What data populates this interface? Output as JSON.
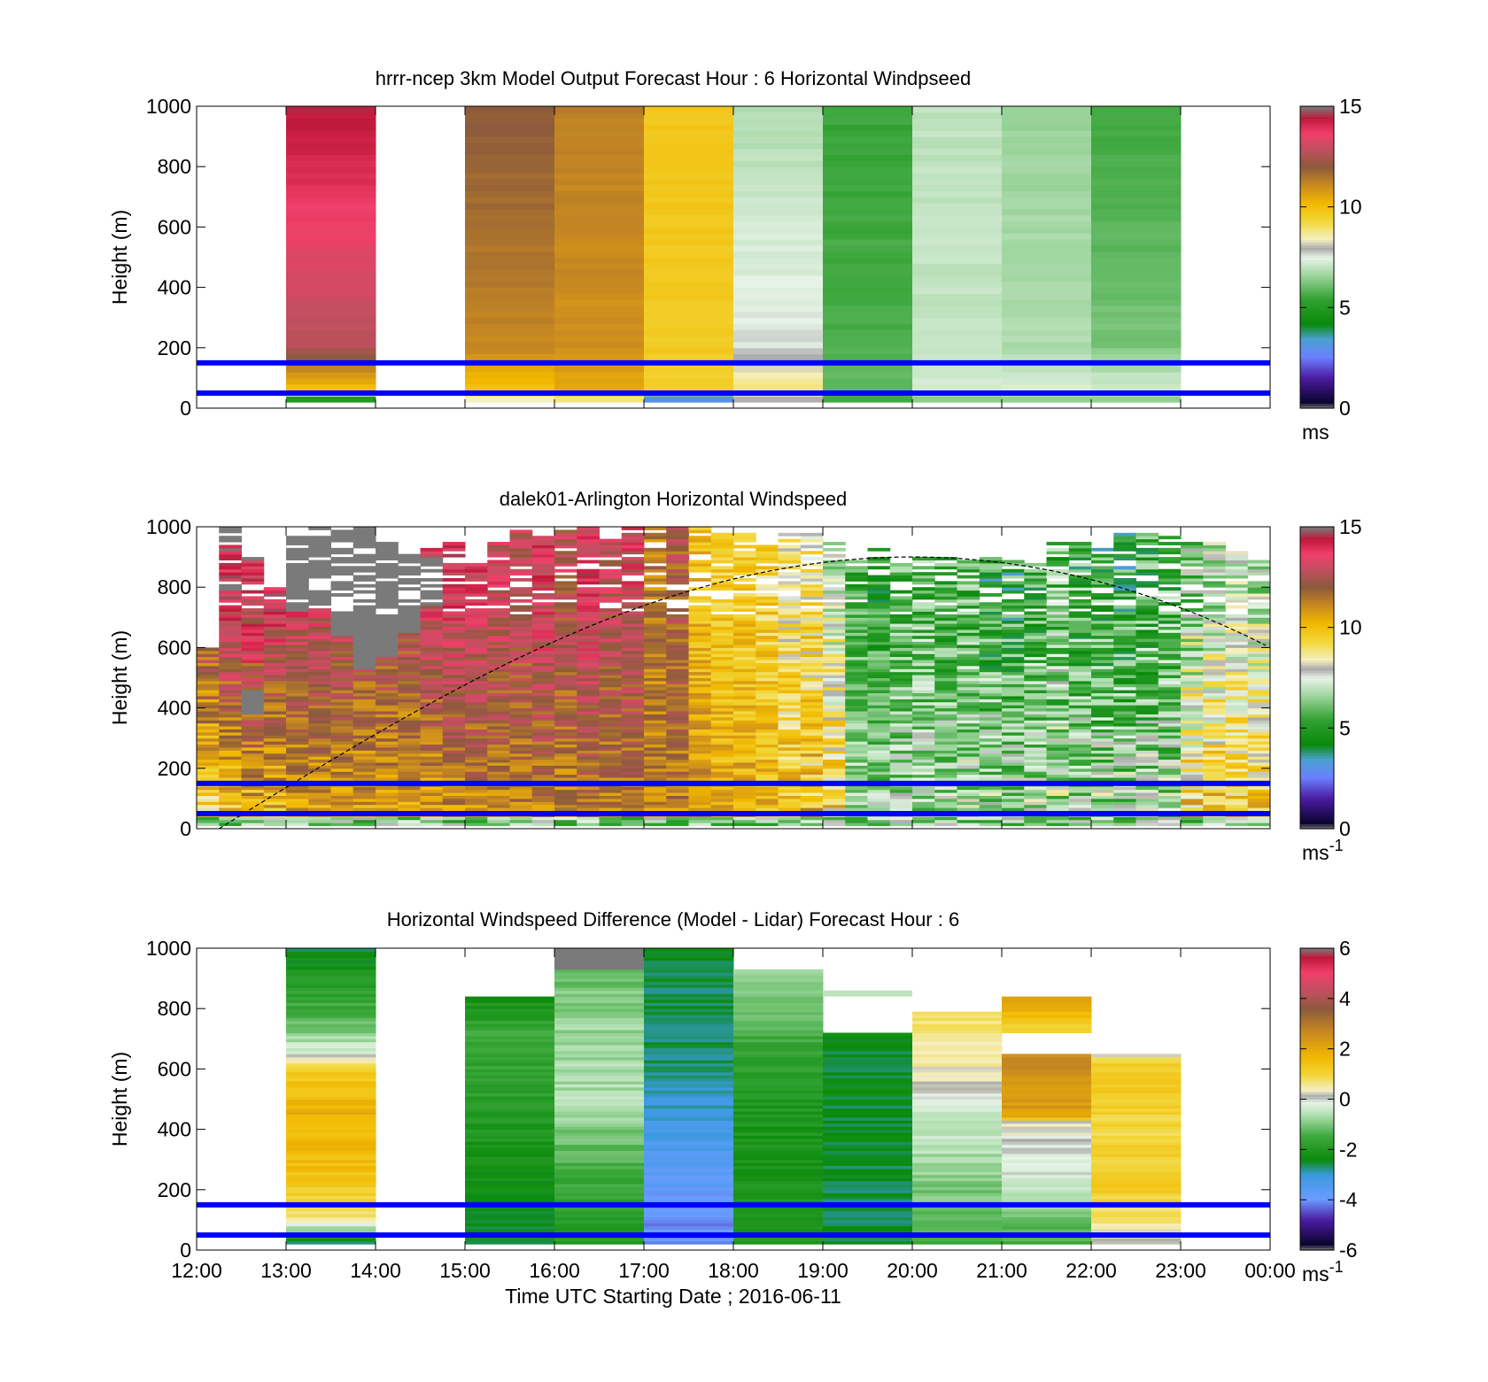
{
  "shared": {
    "time_ticks": [
      "12:00",
      "13:00",
      "14:00",
      "15:00",
      "16:00",
      "17:00",
      "18:00",
      "19:00",
      "20:00",
      "21:00",
      "22:00",
      "23:00",
      "00:00"
    ],
    "height_ticks": [
      "0",
      "200",
      "400",
      "600",
      "800",
      "1000"
    ],
    "ylabel": "Height (m)",
    "xlabel": "Time UTC  Starting Date ; 2016-06-11",
    "reference_lines_m": [
      50,
      150
    ],
    "reference_line_color": "#0000ff"
  },
  "chart_data": [
    {
      "type": "heatmap",
      "title": "hrrr-ncep 3km Model Output   Forecast Hour : 6 Horizontal Windpseed",
      "ylabel": "Height (m)",
      "xlim_hours": [
        12,
        24
      ],
      "ylim": [
        0,
        1000
      ],
      "colorbar": {
        "ticks": [
          "0",
          "5",
          "10",
          "15"
        ],
        "unit": "ms",
        "unit_sup": "",
        "range": [
          0,
          15
        ]
      },
      "columns": [
        {
          "start_hour": 13,
          "end_hour": 14,
          "top_m": 1000,
          "bottom_m": 20,
          "surface_value": 5,
          "low_value": 10,
          "upper_value": 14.5
        },
        {
          "start_hour": 15,
          "end_hour": 16,
          "top_m": 1000,
          "bottom_m": 20,
          "surface_value": 8.5,
          "low_value": 10,
          "upper_value": 12
        },
        {
          "start_hour": 16,
          "end_hour": 17,
          "top_m": 1000,
          "bottom_m": 20,
          "surface_value": 8.8,
          "low_value": 10.5,
          "upper_value": 11.3
        },
        {
          "start_hour": 17,
          "end_hour": 18,
          "top_m": 1000,
          "bottom_m": 20,
          "surface_value": 3,
          "low_value": 9.5,
          "upper_value": 9.8
        },
        {
          "start_hour": 18,
          "end_hour": 19,
          "top_m": 1000,
          "bottom_m": 20,
          "surface_value": 8,
          "low_value": 8.8,
          "upper_value": 6.8
        },
        {
          "start_hour": 19,
          "end_hour": 20,
          "top_m": 1000,
          "bottom_m": 20,
          "surface_value": 5.5,
          "low_value": 6,
          "upper_value": 5.5
        },
        {
          "start_hour": 20,
          "end_hour": 21,
          "top_m": 1000,
          "bottom_m": 20,
          "surface_value": 6.5,
          "low_value": 7.2,
          "upper_value": 7
        },
        {
          "start_hour": 21,
          "end_hour": 22,
          "top_m": 1000,
          "bottom_m": 20,
          "surface_value": 6.5,
          "low_value": 7.2,
          "upper_value": 6.6
        },
        {
          "start_hour": 22,
          "end_hour": 23,
          "top_m": 1000,
          "bottom_m": 20,
          "surface_value": 6.5,
          "low_value": 7.3,
          "upper_value": 5.5
        }
      ]
    },
    {
      "type": "heatmap",
      "title": "dalek01-Arlington  Horizontal Windspeed",
      "ylabel": "Height (m)",
      "xlim_hours": [
        12,
        24
      ],
      "ylim": [
        0,
        1000
      ],
      "colorbar": {
        "ticks": [
          "0",
          "5",
          "10",
          "15"
        ],
        "unit": "ms",
        "unit_sup": "-1",
        "range": [
          0,
          15
        ]
      },
      "dashed_curve": {
        "start_hour": 12.25,
        "peak_hour": 20,
        "peak_height_m": 900,
        "end_hour": 24,
        "end_height_m": 600
      },
      "columns": [
        {
          "start_hour": 12.0,
          "end_hour": 12.25,
          "top_m": 600,
          "low_value": 9,
          "upper_value": 13.5,
          "noise": 1.2,
          "gray_top_m": null
        },
        {
          "start_hour": 12.25,
          "end_hour": 12.5,
          "top_m": 1000,
          "low_value": 9.5,
          "upper_value": 14,
          "noise": 1.2,
          "gray_top_m": 1000,
          "gray_bottom_m": 940
        },
        {
          "start_hour": 12.5,
          "end_hour": 12.75,
          "top_m": 900,
          "low_value": 10,
          "upper_value": 14,
          "noise": 1.4,
          "gray_top_m": 460,
          "gray_bottom_m": 380
        },
        {
          "start_hour": 12.75,
          "end_hour": 13.0,
          "top_m": 800,
          "low_value": 10,
          "upper_value": 14,
          "noise": 1.2,
          "gray_top_m": null
        },
        {
          "start_hour": 13.0,
          "end_hour": 13.25,
          "top_m": 1000,
          "low_value": 10.5,
          "upper_value": 13.5,
          "noise": 1.0,
          "gray_top_m": 1000,
          "gray_bottom_m": 720
        },
        {
          "start_hour": 13.25,
          "end_hour": 13.5,
          "top_m": 1000,
          "low_value": 10.5,
          "upper_value": 13.5,
          "noise": 1.0,
          "gray_top_m": 1000,
          "gray_bottom_m": 730
        },
        {
          "start_hour": 13.5,
          "end_hour": 13.75,
          "top_m": 1000,
          "low_value": 10.5,
          "upper_value": 13.2,
          "noise": 1.0,
          "gray_top_m": 1000,
          "gray_bottom_m": 640
        },
        {
          "start_hour": 13.75,
          "end_hour": 14.0,
          "top_m": 1000,
          "low_value": 10.5,
          "upper_value": 13.0,
          "noise": 1.0,
          "gray_top_m": 1000,
          "gray_bottom_m": 530
        },
        {
          "start_hour": 14.0,
          "end_hour": 14.25,
          "top_m": 950,
          "low_value": 10.5,
          "upper_value": 13.0,
          "noise": 1.0,
          "gray_top_m": 950,
          "gray_bottom_m": 570
        },
        {
          "start_hour": 14.25,
          "end_hour": 14.5,
          "top_m": 950,
          "low_value": 10.5,
          "upper_value": 13.0,
          "noise": 1.0,
          "gray_top_m": 950,
          "gray_bottom_m": 650
        },
        {
          "start_hour": 14.5,
          "end_hour": 14.75,
          "top_m": 950,
          "low_value": 10.5,
          "upper_value": 13.5,
          "noise": 1.0,
          "gray_top_m": 900,
          "gray_bottom_m": 740
        },
        {
          "start_hour": 14.75,
          "end_hour": 15.0,
          "top_m": 950,
          "low_value": 10.8,
          "upper_value": 13.8,
          "noise": 1.0,
          "gray_top_m": null
        },
        {
          "start_hour": 15.0,
          "end_hour": 15.25,
          "top_m": 900,
          "low_value": 11.0,
          "upper_value": 13.5,
          "noise": 1.0,
          "gray_top_m": null
        },
        {
          "start_hour": 15.25,
          "end_hour": 15.5,
          "top_m": 950,
          "low_value": 11.0,
          "upper_value": 13.2,
          "noise": 1.0,
          "gray_top_m": null
        },
        {
          "start_hour": 15.5,
          "end_hour": 15.75,
          "top_m": 1000,
          "low_value": 11.2,
          "upper_value": 12.8,
          "noise": 1.0,
          "gray_top_m": null
        },
        {
          "start_hour": 15.75,
          "end_hour": 16.0,
          "top_m": 980,
          "low_value": 11.2,
          "upper_value": 13.5,
          "noise": 1.0,
          "gray_top_m": null
        },
        {
          "start_hour": 16.0,
          "end_hour": 16.25,
          "top_m": 1000,
          "low_value": 11.2,
          "upper_value": 12.6,
          "noise": 1.0,
          "gray_top_m": null
        },
        {
          "start_hour": 16.25,
          "end_hour": 16.5,
          "top_m": 1000,
          "low_value": 11.2,
          "upper_value": 13.6,
          "noise": 1.0,
          "gray_top_m": null
        },
        {
          "start_hour": 16.5,
          "end_hour": 16.75,
          "top_m": 960,
          "low_value": 11.2,
          "upper_value": 12.8,
          "noise": 1.0,
          "gray_top_m": null
        },
        {
          "start_hour": 16.75,
          "end_hour": 17.0,
          "top_m": 1000,
          "low_value": 11.3,
          "upper_value": 13.2,
          "noise": 1.0,
          "gray_top_m": null
        },
        {
          "start_hour": 17.0,
          "end_hour": 17.25,
          "top_m": 1000,
          "low_value": 11.0,
          "upper_value": 11.5,
          "noise": 0.9,
          "gray_top_m": null
        },
        {
          "start_hour": 17.25,
          "end_hour": 17.5,
          "top_m": 1000,
          "low_value": 11.2,
          "upper_value": 12.2,
          "noise": 1.0,
          "gray_top_m": null
        },
        {
          "start_hour": 17.5,
          "end_hour": 17.75,
          "top_m": 1000,
          "low_value": 11.0,
          "upper_value": 10.0,
          "noise": 0.8,
          "gray_top_m": null
        },
        {
          "start_hour": 17.75,
          "end_hour": 18.0,
          "top_m": 980,
          "low_value": 10.5,
          "upper_value": 9.6,
          "noise": 0.8,
          "gray_top_m": null
        },
        {
          "start_hour": 18.0,
          "end_hour": 18.25,
          "top_m": 980,
          "low_value": 10.5,
          "upper_value": 9.6,
          "noise": 0.9,
          "gray_top_m": null
        },
        {
          "start_hour": 18.25,
          "end_hour": 18.5,
          "top_m": 950,
          "low_value": 10.2,
          "upper_value": 9.3,
          "noise": 1.0,
          "gray_top_m": null
        },
        {
          "start_hour": 18.5,
          "end_hour": 18.75,
          "top_m": 980,
          "low_value": 10.0,
          "upper_value": 8.6,
          "noise": 1.2,
          "gray_top_m": null
        },
        {
          "start_hour": 18.75,
          "end_hour": 19.0,
          "top_m": 980,
          "low_value": 10.0,
          "upper_value": 8.8,
          "noise": 1.5,
          "gray_top_m": null
        },
        {
          "start_hour": 19.0,
          "end_hour": 19.25,
          "top_m": 950,
          "low_value": 9.5,
          "upper_value": 7.5,
          "noise": 1.6,
          "gray_top_m": null
        },
        {
          "start_hour": 19.25,
          "end_hour": 19.5,
          "top_m": 900,
          "low_value": 6.8,
          "upper_value": 5.5,
          "noise": 1.0,
          "gray_top_m": null
        },
        {
          "start_hour": 19.5,
          "end_hour": 19.75,
          "top_m": 930,
          "low_value": 6.8,
          "upper_value": 5.0,
          "noise": 1.2,
          "gray_top_m": null
        },
        {
          "start_hour": 19.75,
          "end_hour": 20.0,
          "top_m": 900,
          "low_value": 7.0,
          "upper_value": 5.6,
          "noise": 1.4,
          "gray_top_m": null
        },
        {
          "start_hour": 20.0,
          "end_hour": 20.25,
          "top_m": 900,
          "low_value": 7.0,
          "upper_value": 5.8,
          "noise": 1.5,
          "gray_top_m": null
        },
        {
          "start_hour": 20.25,
          "end_hour": 20.5,
          "top_m": 900,
          "low_value": 7.2,
          "upper_value": 5.4,
          "noise": 1.5,
          "gray_top_m": null
        },
        {
          "start_hour": 20.5,
          "end_hour": 20.75,
          "top_m": 900,
          "low_value": 7.2,
          "upper_value": 5.6,
          "noise": 1.6,
          "gray_top_m": null
        },
        {
          "start_hour": 20.75,
          "end_hour": 21.0,
          "top_m": 900,
          "low_value": 7.0,
          "upper_value": 5.0,
          "noise": 1.8,
          "gray_top_m": null
        },
        {
          "start_hour": 21.0,
          "end_hour": 21.25,
          "top_m": 900,
          "low_value": 7.0,
          "upper_value": 5.0,
          "noise": 1.8,
          "gray_top_m": null
        },
        {
          "start_hour": 21.25,
          "end_hour": 21.5,
          "top_m": 900,
          "low_value": 7.2,
          "upper_value": 5.2,
          "noise": 1.6,
          "gray_top_m": null
        },
        {
          "start_hour": 21.5,
          "end_hour": 21.75,
          "top_m": 950,
          "low_value": 7.2,
          "upper_value": 5.8,
          "noise": 1.8,
          "gray_top_m": null
        },
        {
          "start_hour": 21.75,
          "end_hour": 22.0,
          "top_m": 950,
          "low_value": 7.0,
          "upper_value": 5.4,
          "noise": 1.8,
          "gray_top_m": null
        },
        {
          "start_hour": 22.0,
          "end_hour": 22.25,
          "top_m": 950,
          "low_value": 7.0,
          "upper_value": 5.2,
          "noise": 1.8,
          "gray_top_m": null
        },
        {
          "start_hour": 22.25,
          "end_hour": 22.5,
          "top_m": 980,
          "low_value": 7.0,
          "upper_value": 5.0,
          "noise": 1.8,
          "gray_top_m": null
        },
        {
          "start_hour": 22.5,
          "end_hour": 22.75,
          "top_m": 980,
          "low_value": 7.2,
          "upper_value": 5.2,
          "noise": 1.8,
          "gray_top_m": null
        },
        {
          "start_hour": 22.75,
          "end_hour": 23.0,
          "top_m": 980,
          "low_value": 7.0,
          "upper_value": 5.4,
          "noise": 1.8,
          "gray_top_m": null
        },
        {
          "start_hour": 23.0,
          "end_hour": 23.25,
          "top_m": 950,
          "low_value": 9.5,
          "upper_value": 6.5,
          "noise": 1.8,
          "gray_top_m": null
        },
        {
          "start_hour": 23.25,
          "end_hour": 23.5,
          "top_m": 950,
          "low_value": 9.8,
          "upper_value": 7.0,
          "noise": 1.6,
          "gray_top_m": null
        },
        {
          "start_hour": 23.5,
          "end_hour": 23.75,
          "top_m": 930,
          "low_value": 9.5,
          "upper_value": 7.2,
          "noise": 1.5,
          "gray_top_m": null
        },
        {
          "start_hour": 23.75,
          "end_hour": 24.0,
          "top_m": 900,
          "low_value": 9.6,
          "upper_value": 7.0,
          "noise": 1.5,
          "gray_top_m": null
        }
      ]
    },
    {
      "type": "heatmap",
      "title": "Horizontal Windspeed Difference (Model - Lidar) Forecast Hour : 6",
      "ylabel": "Height (m)",
      "xlabel": "Time UTC  Starting Date ; 2016-06-11",
      "xlim_hours": [
        12,
        24
      ],
      "ylim": [
        0,
        1000
      ],
      "colorbar": {
        "ticks": [
          "-6",
          "-4",
          "-2",
          "0",
          "2",
          "4",
          "6"
        ],
        "unit": "ms",
        "unit_sup": "-1",
        "range": [
          -6,
          6
        ]
      },
      "columns": [
        {
          "start_hour": 13,
          "end_hour": 14,
          "top_m": 1000,
          "bottom_m": 20,
          "stops": [
            [
              20,
              -2.5
            ],
            [
              100,
              0.6
            ],
            [
              250,
              1.5
            ],
            [
              450,
              1.8
            ],
            [
              600,
              1.2
            ],
            [
              650,
              -0.2
            ],
            [
              750,
              -1.2
            ],
            [
              1000,
              -2.6
            ]
          ]
        },
        {
          "start_hour": 15,
          "end_hour": 16,
          "top_m": 840,
          "bottom_m": 20,
          "stops": [
            [
              20,
              -2.5
            ],
            [
              250,
              -2.2
            ],
            [
              500,
              -1.8
            ],
            [
              700,
              -1.5
            ],
            [
              840,
              -2.2
            ]
          ]
        },
        {
          "start_hour": 16,
          "end_hour": 17,
          "top_m": 1000,
          "bottom_m": 20,
          "gray_top_m": 1000,
          "gray_bottom_m": 930,
          "stops": [
            [
              20,
              -2.0
            ],
            [
              250,
              -1.5
            ],
            [
              500,
              -0.6
            ],
            [
              750,
              -0.8
            ],
            [
              930,
              -1.2
            ]
          ]
        },
        {
          "start_hour": 17,
          "end_hour": 18,
          "top_m": 1000,
          "bottom_m": 20,
          "stops": [
            [
              20,
              -4.2
            ],
            [
              200,
              -3.8
            ],
            [
              400,
              -3.2
            ],
            [
              560,
              -2.8
            ],
            [
              700,
              -2.6
            ],
            [
              1000,
              -2.5
            ]
          ]
        },
        {
          "start_hour": 18,
          "end_hour": 19,
          "top_m": 930,
          "bottom_m": 20,
          "stops": [
            [
              20,
              -2.0
            ],
            [
              300,
              -2.2
            ],
            [
              600,
              -1.8
            ],
            [
              930,
              -0.7
            ]
          ]
        },
        {
          "start_hour": 19,
          "end_hour": 20,
          "top_m": 720,
          "bottom_m": 20,
          "extra_band": [
            860,
            840,
            -0.5
          ],
          "stops": [
            [
              20,
              -2.6
            ],
            [
              400,
              -2.5
            ],
            [
              720,
              -2.4
            ]
          ]
        },
        {
          "start_hour": 20,
          "end_hour": 21,
          "top_m": 790,
          "bottom_m": 20,
          "stops": [
            [
              20,
              -1.5
            ],
            [
              250,
              -0.8
            ],
            [
              450,
              -0.3
            ],
            [
              600,
              0.4
            ],
            [
              790,
              0.9
            ]
          ]
        },
        {
          "start_hour": 21,
          "end_hour": 22,
          "top_m": 840,
          "bottom_m": 20,
          "gap_m": [
            720,
            650
          ],
          "stops": [
            [
              20,
              -1.5
            ],
            [
              200,
              -0.3
            ],
            [
              420,
              0.2
            ],
            [
              440,
              2.2
            ],
            [
              650,
              2.6
            ],
            [
              720,
              1.0
            ],
            [
              840,
              2.4
            ]
          ]
        },
        {
          "start_hour": 22,
          "end_hour": 23,
          "top_m": 650,
          "bottom_m": 20,
          "stops": [
            [
              20,
              0.3
            ],
            [
              200,
              1.2
            ],
            [
              400,
              1.0
            ],
            [
              600,
              1.3
            ],
            [
              650,
              0.2
            ]
          ]
        }
      ]
    }
  ]
}
